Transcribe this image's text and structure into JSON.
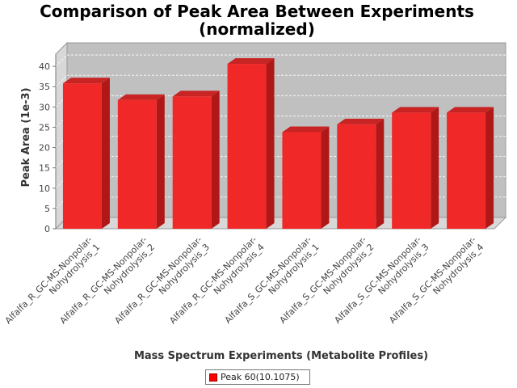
{
  "chart_data": {
    "type": "bar",
    "title": "Comparison of Peak Area Between Experiments",
    "subtitle": "(normalized)",
    "xlabel": "Mass Spectrum Experiments (Metabolite Profiles)",
    "ylabel": "Peak Area (1e-3)",
    "ylim": [
      0,
      43
    ],
    "yticks": [
      0,
      5,
      10,
      15,
      20,
      25,
      30,
      35,
      40
    ],
    "grid": true,
    "legend_position": "bottom",
    "categories": [
      [
        "Alfalfa_R_GC-MS-Nonpolar-",
        "Nohydrolysis_1"
      ],
      [
        "Alfalfa_R_GC-MS-Nonpolar-",
        "Nohydrolysis_2"
      ],
      [
        "Alfalfa_R_GC-MS-Nonpolar-",
        "Nohydrolysis_3"
      ],
      [
        "Alfalfa_R_GC-MS-Nonpolar-",
        "Nohydrolysis_4"
      ],
      [
        "Alfalfa_S_GC-MS-Nonpolar-",
        "Nohydrolysis_1"
      ],
      [
        "Alfalfa_S_GC-MS-Nonpolar-",
        "Nohydrolysis_2"
      ],
      [
        "Alfalfa_S_GC-MS-Nonpolar-",
        "Nohydrolysis_3"
      ],
      [
        "Alfalfa_S_GC-MS-Nonpolar-",
        "Nohydrolysis_4"
      ]
    ],
    "series": [
      {
        "name": "Peak 60(10.1075)",
        "color": "#ff0000",
        "values": [
          35.8,
          31.7,
          32.6,
          40.6,
          23.8,
          25.7,
          28.6,
          28.6
        ]
      }
    ]
  }
}
